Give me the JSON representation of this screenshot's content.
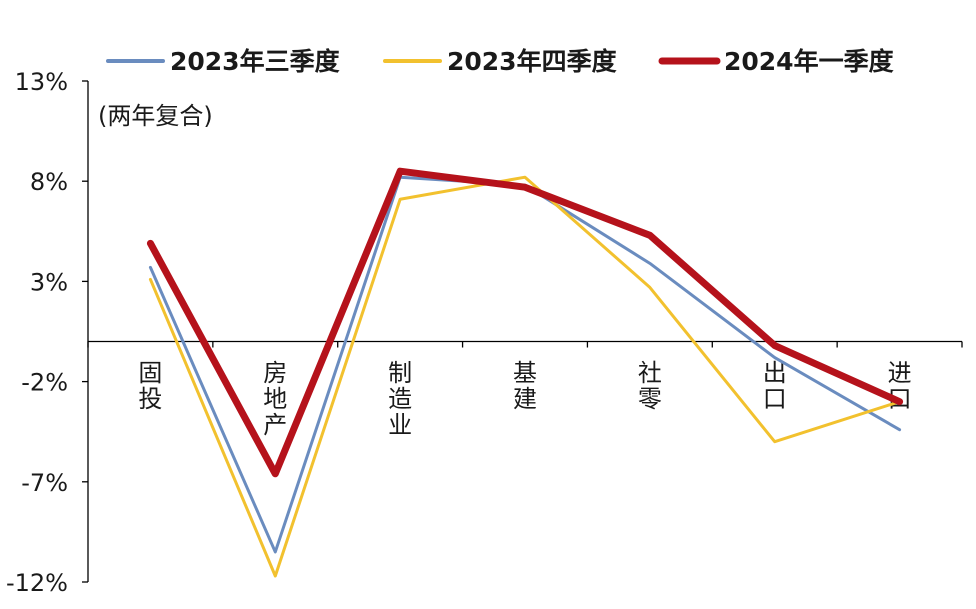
{
  "chart_data": {
    "type": "line",
    "note": "(两年复合)",
    "categories": [
      "固投",
      "房地产",
      "制造业",
      "基建",
      "社零",
      "出口",
      "进口"
    ],
    "ylim": [
      -12,
      13
    ],
    "yticks": [
      13,
      8,
      3,
      -2,
      -7,
      -12
    ],
    "ytick_labels": [
      "13%",
      "8%",
      "3%",
      "-2%",
      "-7%",
      "-12%"
    ],
    "grid": false,
    "legend_position": "top",
    "series": [
      {
        "name": "2023年三季度",
        "color": "#6a8cbf",
        "width": "thin",
        "values": [
          3.7,
          -10.5,
          8.2,
          7.8,
          3.9,
          -0.8,
          -4.4
        ]
      },
      {
        "name": "2023年四季度",
        "color": "#f2c12e",
        "width": "thin",
        "values": [
          3.1,
          -11.7,
          7.1,
          8.2,
          2.7,
          -5.0,
          -3.0
        ]
      },
      {
        "name": "2024年一季度",
        "color": "#b5121b",
        "width": "thick",
        "values": [
          4.9,
          -6.6,
          8.5,
          7.7,
          5.3,
          -0.2,
          -3.0
        ]
      }
    ]
  }
}
